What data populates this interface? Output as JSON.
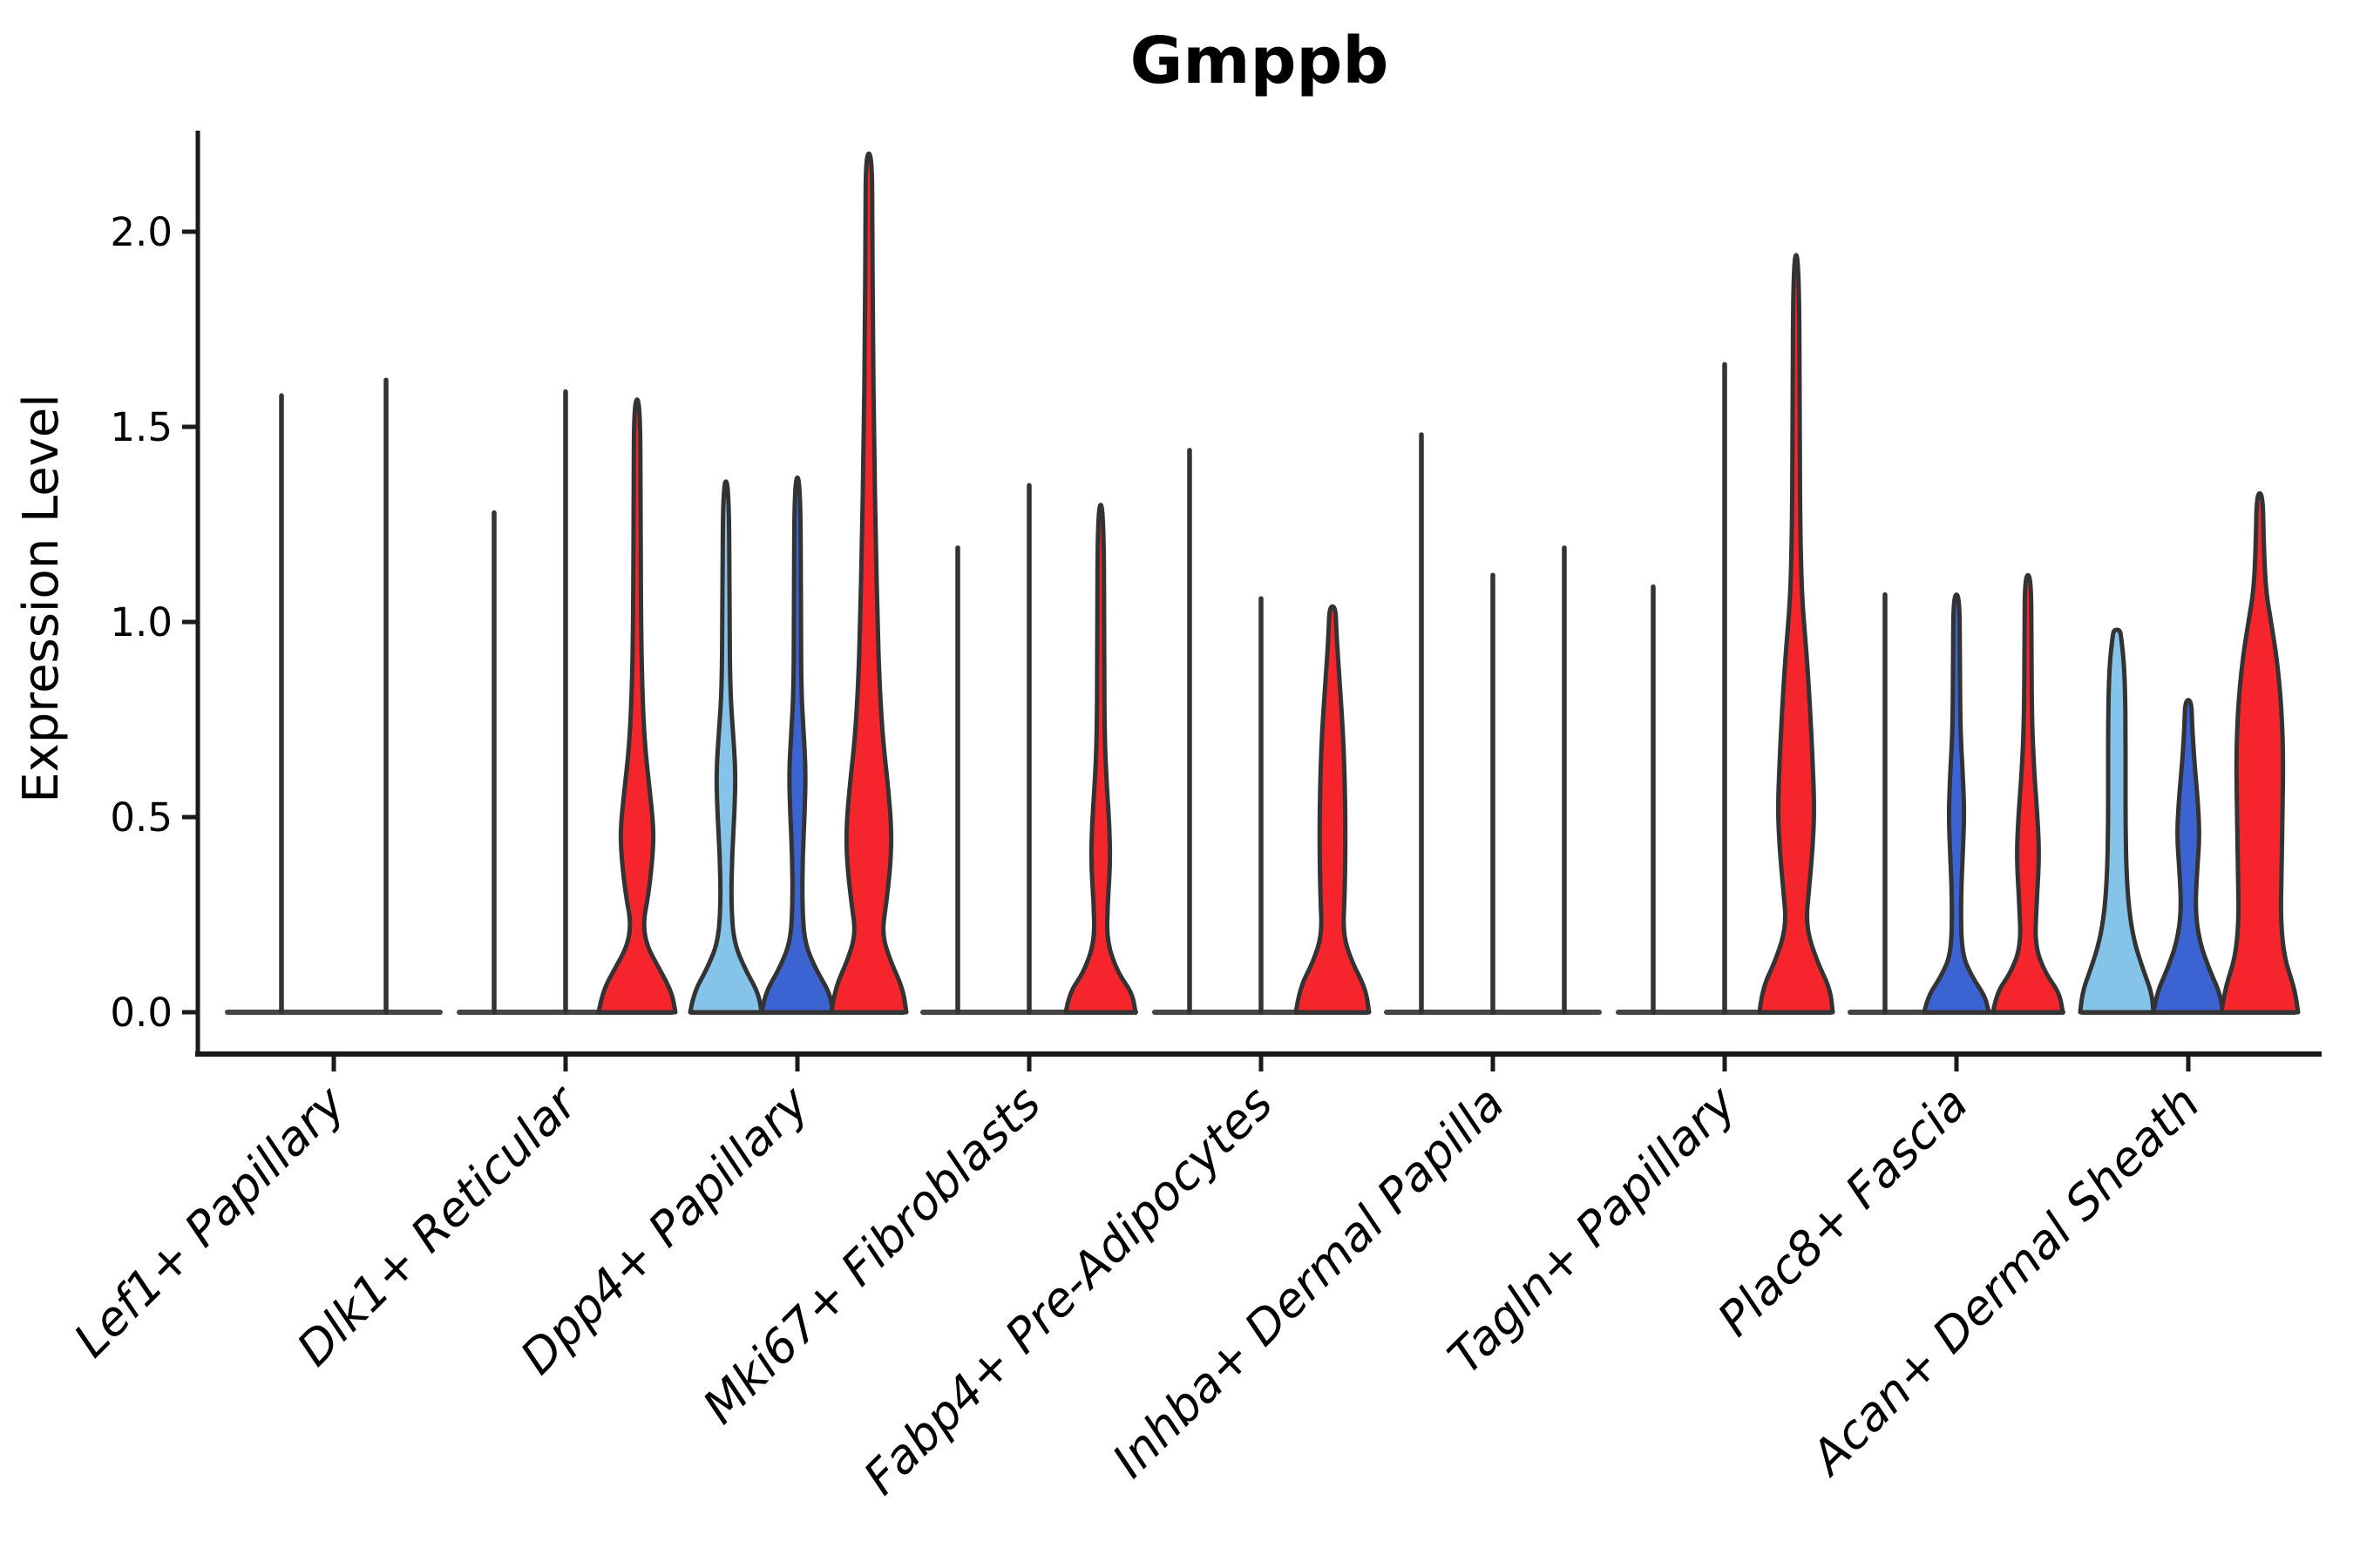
{
  "chart_data": {
    "type": "violin",
    "title": "Gmppb",
    "ylabel": "Expression Level",
    "xlabel": "",
    "grid": false,
    "legend_position": "none",
    "axis_ranges": {
      "y_min": -0.11,
      "y_max": 2.26
    },
    "yticks": [
      {
        "value": 0.0,
        "label": "0.0"
      },
      {
        "value": 0.5,
        "label": "0.5"
      },
      {
        "value": 1.0,
        "label": "1.0"
      },
      {
        "value": 1.5,
        "label": "1.5"
      },
      {
        "value": 2.0,
        "label": "2.0"
      }
    ],
    "colors": {
      "lightblue": "#85C4E8",
      "blue": "#3C63D2",
      "red": "#F4262B",
      "outline": "#333333",
      "baseline": "#454545",
      "axis": "#1a1a1a",
      "text": "#000000"
    },
    "groups": [
      {
        "label": "Lef1+ Papillary",
        "violins": [
          {
            "fill": "lightblue",
            "shape": "line",
            "max": 1.58
          },
          {
            "fill": "blue",
            "shape": "line",
            "max": 1.62
          }
        ]
      },
      {
        "label": "Dlk1+ Reticular",
        "violins": [
          {
            "fill": "lightblue",
            "shape": "line",
            "max": 1.28
          },
          {
            "fill": "blue",
            "shape": "line",
            "max": 1.59
          },
          {
            "fill": "red",
            "shape": "body",
            "max": 1.57,
            "profile": [
              [
                0,
                44
              ],
              [
                0.05,
                40
              ],
              [
                0.11,
                26
              ],
              [
                0.17,
                11
              ],
              [
                0.23,
                7
              ],
              [
                0.3,
                13
              ],
              [
                0.4,
                18
              ],
              [
                0.47,
                19
              ],
              [
                0.56,
                15
              ],
              [
                0.68,
                9
              ],
              [
                0.82,
                6
              ],
              [
                1.0,
                4.5
              ],
              [
                1.3,
                4
              ],
              [
                1.57,
                3.5
              ]
            ]
          }
        ]
      },
      {
        "label": "Dpp4+ Papillary",
        "violins": [
          {
            "fill": "lightblue",
            "shape": "body",
            "max": 1.36,
            "profile": [
              [
                0,
                41
              ],
              [
                0.05,
                37
              ],
              [
                0.11,
                22
              ],
              [
                0.18,
                9
              ],
              [
                0.28,
                6
              ],
              [
                0.4,
                7
              ],
              [
                0.52,
                10
              ],
              [
                0.62,
                11
              ],
              [
                0.72,
                8
              ],
              [
                0.82,
                5
              ],
              [
                1.0,
                4
              ],
              [
                1.36,
                3.5
              ]
            ]
          },
          {
            "fill": "blue",
            "shape": "body",
            "max": 1.37,
            "profile": [
              [
                0,
                41
              ],
              [
                0.05,
                37
              ],
              [
                0.11,
                21
              ],
              [
                0.18,
                8
              ],
              [
                0.28,
                5.5
              ],
              [
                0.4,
                6
              ],
              [
                0.52,
                8.5
              ],
              [
                0.62,
                9.5
              ],
              [
                0.72,
                7
              ],
              [
                0.82,
                4.5
              ],
              [
                1.0,
                4
              ],
              [
                1.37,
                3.5
              ]
            ]
          },
          {
            "fill": "red",
            "shape": "body",
            "max": 2.2,
            "profile": [
              [
                0,
                43
              ],
              [
                0.06,
                39
              ],
              [
                0.13,
                25
              ],
              [
                0.2,
                15
              ],
              [
                0.28,
                20
              ],
              [
                0.38,
                25
              ],
              [
                0.47,
                26
              ],
              [
                0.58,
                22
              ],
              [
                0.7,
                16
              ],
              [
                0.85,
                12
              ],
              [
                1.0,
                10
              ],
              [
                1.2,
                8
              ],
              [
                1.45,
                6
              ],
              [
                1.75,
                4.5
              ],
              [
                2.0,
                4
              ],
              [
                2.2,
                3.5
              ]
            ]
          }
        ]
      },
      {
        "label": "Mki67+ Fibroblasts",
        "violins": [
          {
            "fill": "lightblue",
            "shape": "line",
            "max": 1.19
          },
          {
            "fill": "blue",
            "shape": "line",
            "max": 1.35
          },
          {
            "fill": "red",
            "shape": "body",
            "max": 1.3,
            "profile": [
              [
                0,
                40
              ],
              [
                0.05,
                36
              ],
              [
                0.1,
                20
              ],
              [
                0.18,
                7
              ],
              [
                0.28,
                8
              ],
              [
                0.38,
                11
              ],
              [
                0.48,
                10
              ],
              [
                0.58,
                7
              ],
              [
                0.7,
                4.5
              ],
              [
                0.9,
                4
              ],
              [
                1.3,
                3.5
              ]
            ]
          }
        ]
      },
      {
        "label": "Fabp4+ Pre-Adipocytes",
        "violins": [
          {
            "fill": "lightblue",
            "shape": "line",
            "max": 1.44
          },
          {
            "fill": "blue",
            "shape": "line",
            "max": 1.06
          },
          {
            "fill": "red",
            "shape": "body",
            "max": 1.04,
            "profile": [
              [
                0,
                42
              ],
              [
                0.06,
                38
              ],
              [
                0.13,
                22
              ],
              [
                0.2,
                12
              ],
              [
                0.3,
                14
              ],
              [
                0.45,
                15
              ],
              [
                0.6,
                14
              ],
              [
                0.72,
                12
              ],
              [
                0.85,
                8
              ],
              [
                0.97,
                4.5
              ],
              [
                1.04,
                3.5
              ]
            ]
          }
        ]
      },
      {
        "label": "Inhba+ Dermal Papilla",
        "violins": [
          {
            "fill": "lightblue",
            "shape": "line",
            "max": 1.48
          },
          {
            "fill": "blue",
            "shape": "line",
            "max": 1.12
          },
          {
            "fill": "red",
            "shape": "line",
            "max": 1.19
          }
        ]
      },
      {
        "label": "Tagln+ Papillary",
        "violins": [
          {
            "fill": "lightblue",
            "shape": "line",
            "max": 1.09
          },
          {
            "fill": "blue",
            "shape": "line",
            "max": 1.66
          },
          {
            "fill": "red",
            "shape": "body",
            "max": 1.94,
            "profile": [
              [
                0,
                42
              ],
              [
                0.06,
                39
              ],
              [
                0.13,
                24
              ],
              [
                0.22,
                11
              ],
              [
                0.32,
                15
              ],
              [
                0.42,
                19
              ],
              [
                0.52,
                21
              ],
              [
                0.64,
                19
              ],
              [
                0.78,
                16
              ],
              [
                0.92,
                12
              ],
              [
                1.05,
                7
              ],
              [
                1.2,
                5
              ],
              [
                1.45,
                4
              ],
              [
                1.94,
                3.5
              ]
            ]
          }
        ]
      },
      {
        "label": "Plac8+ Fascia",
        "violins": [
          {
            "fill": "lightblue",
            "shape": "line",
            "max": 1.07
          },
          {
            "fill": "blue",
            "shape": "body",
            "max": 1.07,
            "profile": [
              [
                0,
                37
              ],
              [
                0.04,
                33
              ],
              [
                0.09,
                18
              ],
              [
                0.15,
                6
              ],
              [
                0.28,
                5
              ],
              [
                0.4,
                7
              ],
              [
                0.5,
                9
              ],
              [
                0.6,
                7.5
              ],
              [
                0.72,
                4.5
              ],
              [
                0.9,
                3.8
              ],
              [
                1.07,
                3.5
              ]
            ]
          },
          {
            "fill": "red",
            "shape": "body",
            "max": 1.12,
            "profile": [
              [
                0,
                40
              ],
              [
                0.05,
                36
              ],
              [
                0.1,
                20
              ],
              [
                0.17,
                8
              ],
              [
                0.28,
                10
              ],
              [
                0.4,
                13
              ],
              [
                0.5,
                11
              ],
              [
                0.62,
                7
              ],
              [
                0.75,
                4.5
              ],
              [
                0.95,
                4
              ],
              [
                1.12,
                3.5
              ]
            ]
          }
        ]
      },
      {
        "label": "Acan+ Dermal Sheath",
        "violins": [
          {
            "fill": "lightblue",
            "shape": "body",
            "max": 0.98,
            "profile": [
              [
                0,
                42
              ],
              [
                0.05,
                40
              ],
              [
                0.11,
                30
              ],
              [
                0.18,
                20
              ],
              [
                0.26,
                14
              ],
              [
                0.36,
                11
              ],
              [
                0.48,
                10
              ],
              [
                0.6,
                10
              ],
              [
                0.72,
                10
              ],
              [
                0.82,
                9.5
              ],
              [
                0.9,
                8
              ],
              [
                0.96,
                5
              ],
              [
                0.98,
                3.5
              ]
            ]
          },
          {
            "fill": "blue",
            "shape": "body",
            "max": 0.8,
            "profile": [
              [
                0,
                40
              ],
              [
                0.05,
                36
              ],
              [
                0.11,
                24
              ],
              [
                0.18,
                13
              ],
              [
                0.26,
                8
              ],
              [
                0.36,
                10
              ],
              [
                0.45,
                13
              ],
              [
                0.54,
                11
              ],
              [
                0.64,
                7
              ],
              [
                0.73,
                4.5
              ],
              [
                0.8,
                3.5
              ]
            ]
          },
          {
            "fill": "red",
            "shape": "body",
            "max": 1.33,
            "profile": [
              [
                0,
                44
              ],
              [
                0.06,
                40
              ],
              [
                0.14,
                28
              ],
              [
                0.24,
                24
              ],
              [
                0.35,
                25
              ],
              [
                0.5,
                26
              ],
              [
                0.65,
                27
              ],
              [
                0.78,
                25
              ],
              [
                0.9,
                20
              ],
              [
                1.0,
                13
              ],
              [
                1.08,
                7
              ],
              [
                1.2,
                4.5
              ],
              [
                1.33,
                3.5
              ]
            ]
          }
        ]
      }
    ]
  }
}
